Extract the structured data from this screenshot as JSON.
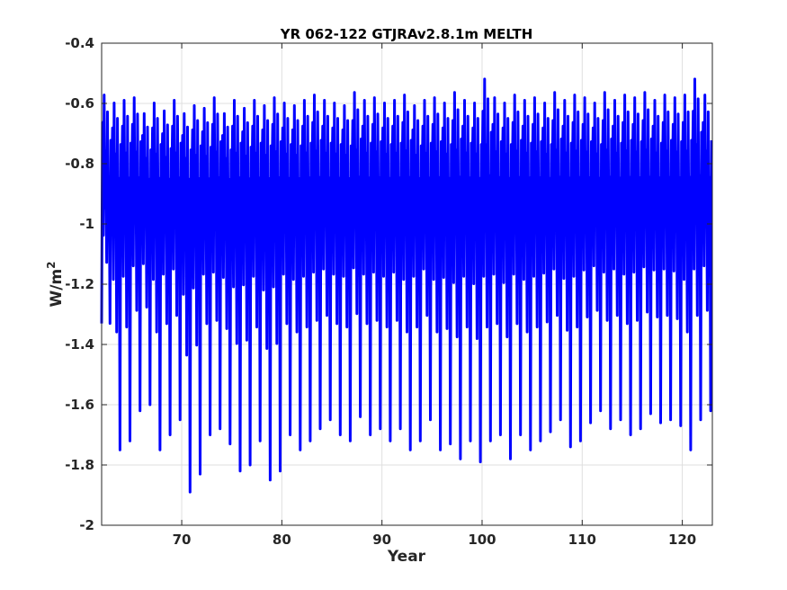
{
  "chart_data": {
    "type": "line",
    "title": "YR 062-122 GTJRAv2.8.1m MELTH",
    "xlabel": "Year",
    "ylabel": "W/m",
    "ylabel_superscript": "2",
    "xlim": [
      62,
      123
    ],
    "ylim": [
      -2,
      -0.4
    ],
    "xticks": [
      70,
      80,
      90,
      100,
      110,
      120
    ],
    "xtick_labels": [
      "70",
      "80",
      "90",
      "100",
      "110",
      "120"
    ],
    "yticks": [
      -2,
      -1.8,
      -1.6,
      -1.4,
      -1.2,
      -1,
      -0.8,
      -0.6,
      -0.4
    ],
    "ytick_labels": [
      "-2",
      "-1.8",
      "-1.6",
      "-1.4",
      "-1.2",
      "-1",
      "-0.8",
      "-0.6",
      "-0.4"
    ],
    "grid": true,
    "series": [
      {
        "color": "#0000ff",
        "samples_per_year": 12,
        "annual_min": [
          -1.33,
          -1.75,
          -1.72,
          -1.62,
          -1.6,
          -1.75,
          -1.7,
          -1.65,
          -1.89,
          -1.83,
          -1.7,
          -1.68,
          -1.73,
          -1.82,
          -1.8,
          -1.72,
          -1.85,
          -1.82,
          -1.7,
          -1.75,
          -1.72,
          -1.68,
          -1.65,
          -1.7,
          -1.72,
          -1.64,
          -1.7,
          -1.68,
          -1.72,
          -1.68,
          -1.75,
          -1.72,
          -1.65,
          -1.75,
          -1.73,
          -1.78,
          -1.72,
          -1.79,
          -1.72,
          -1.7,
          -1.78,
          -1.7,
          -1.75,
          -1.72,
          -1.69,
          -1.65,
          -1.74,
          -1.72,
          -1.66,
          -1.62,
          -1.68,
          -1.65,
          -1.7,
          -1.68,
          -1.63,
          -1.66,
          -1.65,
          -1.67,
          -1.75,
          -1.65,
          -1.62
        ],
        "annual_max": [
          -0.53,
          -0.56,
          -0.55,
          -0.54,
          -0.6,
          -0.56,
          -0.59,
          -0.55,
          -0.6,
          -0.57,
          -0.58,
          -0.54,
          -0.6,
          -0.55,
          -0.58,
          -0.55,
          -0.57,
          -0.54,
          -0.56,
          -0.57,
          -0.55,
          -0.53,
          -0.55,
          -0.56,
          -0.57,
          -0.52,
          -0.55,
          -0.54,
          -0.56,
          -0.55,
          -0.53,
          -0.57,
          -0.55,
          -0.54,
          -0.56,
          -0.52,
          -0.55,
          -0.56,
          -0.47,
          -0.54,
          -0.56,
          -0.53,
          -0.55,
          -0.54,
          -0.56,
          -0.52,
          -0.55,
          -0.53,
          -0.54,
          -0.56,
          -0.52,
          -0.55,
          -0.53,
          -0.54,
          -0.52,
          -0.55,
          -0.53,
          -0.54,
          -0.53,
          -0.47,
          -0.53
        ],
        "annual_mean": -0.88
      }
    ]
  }
}
